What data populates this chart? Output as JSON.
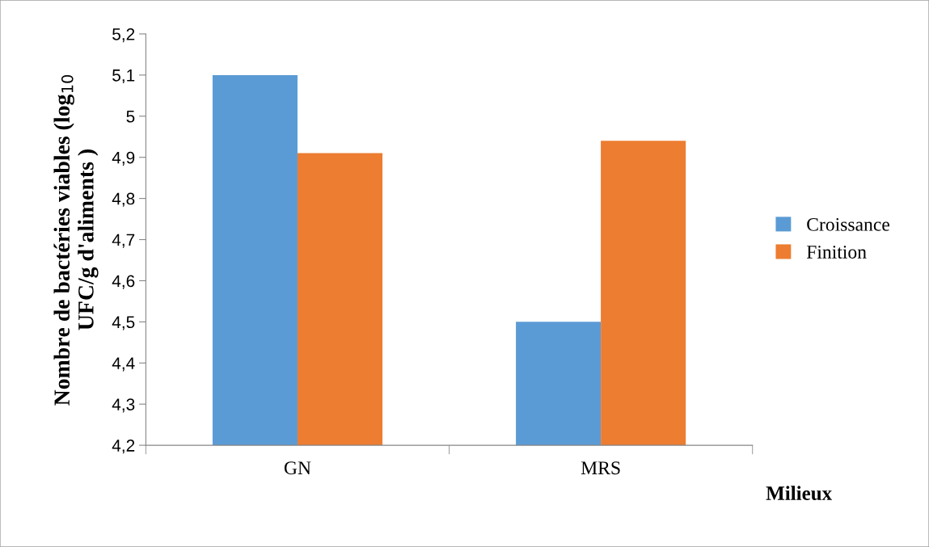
{
  "chart_data": {
    "type": "bar",
    "xlabel": "Milieux",
    "ylabel": "Nombre de bactéries viables (log$_{10}$\nUFC/g d'aliments )",
    "categories": [
      "GN",
      "MRS"
    ],
    "series": [
      {
        "name": "Croissance",
        "color": "#5b9bd5",
        "values": [
          5.1,
          4.5
        ]
      },
      {
        "name": "Finition",
        "color": "#ed7d31",
        "values": [
          4.91,
          4.94
        ]
      }
    ],
    "ylim": [
      4.2,
      5.2
    ],
    "yticks": [
      {
        "value": 4.2,
        "label": "4,2"
      },
      {
        "value": 4.3,
        "label": "4,3"
      },
      {
        "value": 4.4,
        "label": "4,4"
      },
      {
        "value": 4.5,
        "label": "4,5"
      },
      {
        "value": 4.6,
        "label": "4,6"
      },
      {
        "value": 4.7,
        "label": "4,7"
      },
      {
        "value": 4.8,
        "label": "4,8"
      },
      {
        "value": 4.9,
        "label": "4,9"
      },
      {
        "value": 5,
        "label": "5"
      },
      {
        "value": 5.1,
        "label": "5,1"
      },
      {
        "value": 5.2,
        "label": "5,2"
      }
    ],
    "legend": "right",
    "grid": false
  }
}
